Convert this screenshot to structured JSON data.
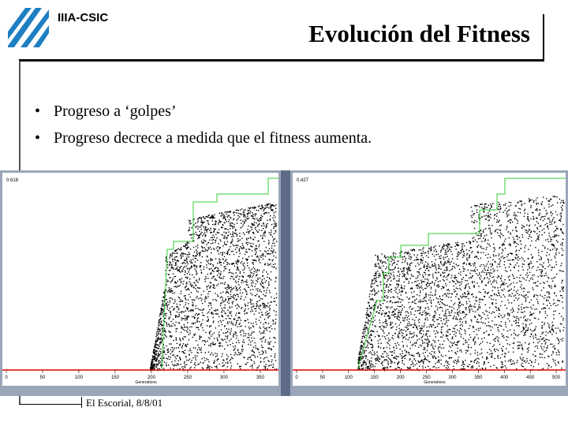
{
  "header": {
    "org": "IIIA-CSIC",
    "title": "Evolución del Fitness"
  },
  "bullets": [
    "Progreso a ‘golpes’",
    "Progreso decrece a medida que el fitness aumenta."
  ],
  "footer": "El Escorial, 8/8/01",
  "colors": {
    "logo": "#1e7fc2",
    "best_line": "#33cc33",
    "base_line": "#e00000"
  },
  "plots": [
    {
      "top_value": "0.618",
      "xlabel": "Generations",
      "ticks": [
        "0",
        "50",
        "100",
        "150",
        "200",
        "250",
        "300",
        "350"
      ]
    },
    {
      "top_value": "0.427",
      "xlabel": "Generations",
      "ticks": [
        "0",
        "50",
        "100",
        "150",
        "200",
        "250",
        "300",
        "350",
        "400",
        "450",
        "500"
      ]
    }
  ]
}
